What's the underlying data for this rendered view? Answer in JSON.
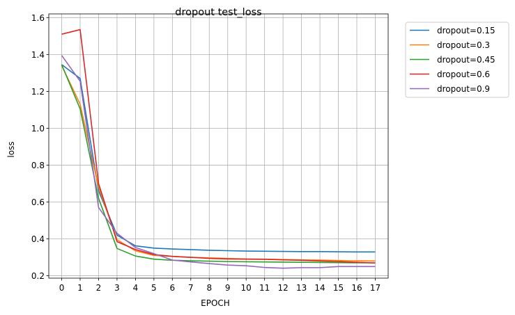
{
  "chart_data": {
    "type": "line",
    "title": "dropout test_loss",
    "xlabel": "EPOCH",
    "ylabel": "loss",
    "x": [
      0,
      1,
      2,
      3,
      4,
      5,
      6,
      7,
      8,
      9,
      10,
      11,
      12,
      13,
      14,
      15,
      16,
      17
    ],
    "x_ticks": [
      "0",
      "1",
      "2",
      "3",
      "4",
      "5",
      "6",
      "7",
      "8",
      "9",
      "10",
      "11",
      "12",
      "13",
      "14",
      "15",
      "16",
      "17"
    ],
    "y_ticks": [
      "0.2",
      "0.4",
      "0.6",
      "0.8",
      "1.0",
      "1.2",
      "1.4",
      "1.6"
    ],
    "y_tick_values": [
      0.2,
      0.4,
      0.6,
      0.8,
      1.0,
      1.2,
      1.4,
      1.6
    ],
    "xlim": [
      -0.7,
      17.7
    ],
    "ylim": [
      0.187,
      1.62
    ],
    "grid": true,
    "legend_position": "outside-top-right",
    "series": [
      {
        "name": "dropout=0.15",
        "color": "#1f77b4",
        "values": [
          1.345,
          1.27,
          0.66,
          0.42,
          0.362,
          0.35,
          0.345,
          0.342,
          0.338,
          0.336,
          0.334,
          0.333,
          0.332,
          0.331,
          0.331,
          0.33,
          0.329,
          0.329
        ]
      },
      {
        "name": "dropout=0.3",
        "color": "#ff7f0e",
        "values": [
          1.34,
          1.13,
          0.68,
          0.395,
          0.335,
          0.31,
          0.305,
          0.3,
          0.297,
          0.294,
          0.291,
          0.29,
          0.288,
          0.286,
          0.285,
          0.283,
          0.281,
          0.28
        ]
      },
      {
        "name": "dropout=0.45",
        "color": "#2ca02c",
        "values": [
          1.345,
          1.105,
          0.62,
          0.348,
          0.307,
          0.29,
          0.284,
          0.281,
          0.279,
          0.277,
          0.276,
          0.275,
          0.274,
          0.273,
          0.272,
          0.271,
          0.27,
          0.27
        ]
      },
      {
        "name": "dropout=0.6",
        "color": "#d62728",
        "values": [
          1.51,
          1.535,
          0.7,
          0.385,
          0.342,
          0.315,
          0.305,
          0.3,
          0.294,
          0.291,
          0.29,
          0.289,
          0.286,
          0.284,
          0.28,
          0.277,
          0.273,
          0.269
        ]
      },
      {
        "name": "dropout=0.9",
        "color": "#9467bd",
        "values": [
          1.395,
          1.255,
          0.57,
          0.43,
          0.353,
          0.32,
          0.285,
          0.275,
          0.266,
          0.258,
          0.254,
          0.245,
          0.241,
          0.244,
          0.244,
          0.25,
          0.25,
          0.25
        ]
      }
    ]
  }
}
